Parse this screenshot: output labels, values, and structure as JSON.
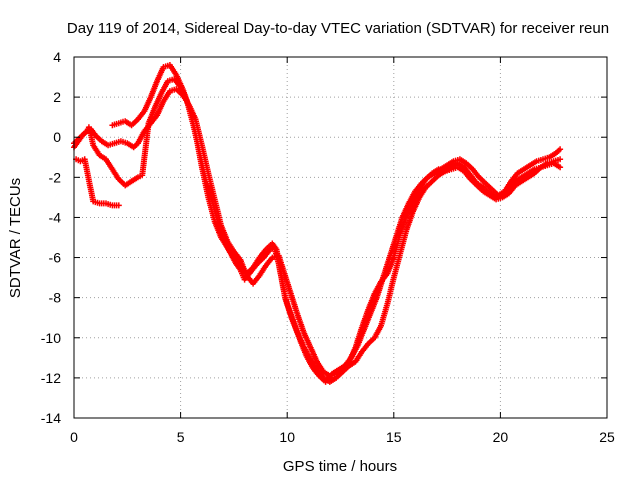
{
  "chart_data": {
    "type": "scatter",
    "title": "Day 119 of 2014, Sidereal Day-to-day VTEC variation (SDTVAR) for receiver reun",
    "xlabel": "GPS time / hours",
    "ylabel": "SDTVAR / TECUs",
    "xlim": [
      0,
      25
    ],
    "ylim": [
      -14,
      4
    ],
    "xticks": [
      0,
      5,
      10,
      15,
      20,
      25
    ],
    "yticks": [
      -14,
      -12,
      -10,
      -8,
      -6,
      -4,
      -2,
      0,
      2,
      4
    ],
    "grid": true,
    "legend": "none",
    "marker": "plus",
    "color": "#ff0000",
    "series": [
      {
        "values_xy": [
          [
            0.0,
            -0.3
          ],
          [
            0.3,
            0.0
          ],
          [
            0.6,
            0.3
          ],
          [
            0.7,
            0.5
          ],
          [
            0.8,
            0.1
          ],
          [
            0.9,
            -0.4
          ],
          [
            1.2,
            -0.9
          ],
          [
            1.5,
            -1.1
          ],
          [
            1.8,
            -1.6
          ],
          [
            2.1,
            -2.1
          ],
          [
            2.4,
            -2.4
          ],
          [
            2.7,
            -2.2
          ],
          [
            3.0,
            -2.0
          ],
          [
            3.2,
            -1.9
          ],
          [
            3.5,
            0.7
          ],
          [
            3.8,
            1.5
          ],
          [
            4.1,
            2.2
          ],
          [
            4.4,
            2.8
          ],
          [
            4.7,
            2.9
          ],
          [
            5.0,
            2.5
          ],
          [
            5.3,
            1.8
          ],
          [
            5.6,
            0.6
          ],
          [
            5.9,
            -0.8
          ],
          [
            6.2,
            -2.2
          ],
          [
            6.5,
            -3.2
          ],
          [
            6.8,
            -4.4
          ],
          [
            7.1,
            -5.3
          ],
          [
            7.4,
            -5.9
          ],
          [
            7.6,
            -6.3
          ],
          [
            7.8,
            -6.6
          ],
          [
            8.0,
            -7.1
          ],
          [
            8.3,
            -6.7
          ],
          [
            8.6,
            -6.3
          ],
          [
            8.9,
            -6.0
          ],
          [
            9.2,
            -5.6
          ],
          [
            9.4,
            -5.5
          ],
          [
            9.6,
            -6.3
          ],
          [
            9.8,
            -7.4
          ],
          [
            10.0,
            -8.3
          ],
          [
            10.3,
            -9.2
          ],
          [
            10.6,
            -10.1
          ],
          [
            10.9,
            -10.9
          ],
          [
            11.2,
            -11.5
          ],
          [
            11.5,
            -11.9
          ],
          [
            11.8,
            -12.2
          ],
          [
            12.1,
            -11.8
          ],
          [
            12.4,
            -11.6
          ],
          [
            12.7,
            -11.4
          ],
          [
            13.0,
            -11.0
          ],
          [
            13.3,
            -10.4
          ],
          [
            13.6,
            -9.6
          ],
          [
            13.9,
            -8.8
          ],
          [
            14.2,
            -8.0
          ],
          [
            14.5,
            -7.0
          ],
          [
            14.8,
            -6.0
          ],
          [
            15.1,
            -5.0
          ],
          [
            15.4,
            -4.0
          ],
          [
            15.7,
            -3.3
          ],
          [
            16.0,
            -2.7
          ],
          [
            16.3,
            -2.3
          ],
          [
            16.6,
            -2.0
          ],
          [
            16.9,
            -1.8
          ],
          [
            17.2,
            -1.6
          ],
          [
            17.5,
            -1.4
          ],
          [
            17.8,
            -1.2
          ],
          [
            18.1,
            -1.1
          ],
          [
            18.4,
            -1.3
          ],
          [
            18.7,
            -1.6
          ],
          [
            19.0,
            -2.0
          ],
          [
            19.3,
            -2.3
          ],
          [
            19.6,
            -2.6
          ],
          [
            19.9,
            -2.9
          ],
          [
            20.2,
            -2.7
          ],
          [
            20.5,
            -2.2
          ],
          [
            20.8,
            -1.8
          ],
          [
            21.1,
            -1.6
          ],
          [
            21.4,
            -1.4
          ],
          [
            21.7,
            -1.2
          ],
          [
            22.0,
            -1.1
          ],
          [
            22.3,
            -1.0
          ],
          [
            22.6,
            -0.8
          ],
          [
            22.8,
            -0.6
          ]
        ]
      },
      {
        "values_xy": [
          [
            0.1,
            -1.1
          ],
          [
            0.3,
            -1.2
          ],
          [
            0.5,
            -1.1
          ],
          [
            0.9,
            -3.2
          ],
          [
            1.2,
            -3.3
          ],
          [
            1.5,
            -3.3
          ],
          [
            1.8,
            -3.4
          ],
          [
            2.1,
            -3.4
          ],
          [
            1.8,
            0.6
          ],
          [
            2.1,
            0.7
          ],
          [
            2.4,
            0.8
          ],
          [
            2.7,
            0.6
          ],
          [
            3.0,
            0.9
          ],
          [
            3.3,
            1.3
          ],
          [
            3.6,
            2.0
          ],
          [
            3.9,
            2.8
          ],
          [
            4.2,
            3.5
          ],
          [
            4.5,
            3.6
          ],
          [
            4.8,
            3.1
          ],
          [
            5.1,
            2.4
          ],
          [
            5.4,
            1.5
          ],
          [
            5.7,
            0.2
          ],
          [
            6.0,
            -1.5
          ],
          [
            6.3,
            -3.0
          ],
          [
            6.6,
            -4.2
          ],
          [
            6.9,
            -5.0
          ],
          [
            7.2,
            -5.5
          ],
          [
            7.5,
            -6.0
          ],
          [
            7.8,
            -6.5
          ],
          [
            8.1,
            -6.8
          ],
          [
            8.4,
            -6.5
          ],
          [
            8.7,
            -6.0
          ],
          [
            9.0,
            -5.6
          ],
          [
            9.3,
            -5.3
          ],
          [
            9.5,
            -5.6
          ],
          [
            9.7,
            -6.8
          ],
          [
            9.9,
            -8.0
          ],
          [
            10.2,
            -9.0
          ],
          [
            10.5,
            -9.8
          ],
          [
            10.8,
            -10.5
          ],
          [
            11.1,
            -11.1
          ],
          [
            11.4,
            -11.6
          ],
          [
            11.7,
            -12.0
          ],
          [
            12.0,
            -12.2
          ],
          [
            12.3,
            -12.0
          ],
          [
            12.6,
            -11.7
          ],
          [
            12.9,
            -11.4
          ],
          [
            13.2,
            -11.2
          ],
          [
            13.5,
            -10.7
          ],
          [
            13.8,
            -10.3
          ],
          [
            14.1,
            -10.0
          ],
          [
            14.4,
            -9.4
          ],
          [
            14.7,
            -8.3
          ],
          [
            15.0,
            -7.0
          ],
          [
            15.3,
            -5.8
          ],
          [
            15.6,
            -4.6
          ],
          [
            15.9,
            -3.7
          ],
          [
            16.2,
            -3.0
          ],
          [
            16.5,
            -2.5
          ],
          [
            16.8,
            -2.2
          ],
          [
            17.1,
            -1.9
          ],
          [
            17.4,
            -1.7
          ],
          [
            17.7,
            -1.5
          ],
          [
            18.0,
            -1.3
          ],
          [
            18.3,
            -1.5
          ],
          [
            18.6,
            -1.9
          ],
          [
            18.9,
            -2.3
          ],
          [
            19.2,
            -2.5
          ],
          [
            19.5,
            -2.8
          ],
          [
            19.8,
            -3.0
          ],
          [
            20.1,
            -2.9
          ],
          [
            20.4,
            -2.6
          ],
          [
            20.7,
            -2.2
          ],
          [
            21.0,
            -2.0
          ],
          [
            21.3,
            -1.8
          ],
          [
            21.6,
            -1.6
          ],
          [
            21.9,
            -1.5
          ],
          [
            22.2,
            -1.3
          ],
          [
            22.5,
            -1.2
          ],
          [
            22.8,
            -1.1
          ]
        ]
      },
      {
        "values_xy": [
          [
            0.0,
            -0.5
          ],
          [
            0.2,
            -0.2
          ],
          [
            0.4,
            0.1
          ],
          [
            0.6,
            0.3
          ],
          [
            0.8,
            0.4
          ],
          [
            1.0,
            0.1
          ],
          [
            1.3,
            -0.2
          ],
          [
            1.6,
            -0.4
          ],
          [
            1.9,
            -0.3
          ],
          [
            2.2,
            -0.2
          ],
          [
            2.5,
            -0.3
          ],
          [
            2.8,
            -0.5
          ],
          [
            3.0,
            -0.3
          ],
          [
            3.3,
            0.3
          ],
          [
            3.6,
            0.7
          ],
          [
            3.9,
            1.1
          ],
          [
            4.2,
            1.8
          ],
          [
            4.5,
            2.3
          ],
          [
            4.8,
            2.4
          ],
          [
            5.1,
            2.1
          ],
          [
            5.4,
            1.6
          ],
          [
            5.7,
            0.9
          ],
          [
            6.0,
            -0.4
          ],
          [
            6.3,
            -1.8
          ],
          [
            6.6,
            -3.1
          ],
          [
            6.9,
            -4.4
          ],
          [
            7.2,
            -5.2
          ],
          [
            7.5,
            -5.7
          ],
          [
            7.8,
            -6.1
          ],
          [
            8.1,
            -6.9
          ],
          [
            8.4,
            -7.3
          ],
          [
            8.7,
            -6.9
          ],
          [
            9.0,
            -6.4
          ],
          [
            9.3,
            -6.0
          ],
          [
            9.6,
            -5.9
          ],
          [
            9.9,
            -6.9
          ],
          [
            10.2,
            -7.9
          ],
          [
            10.5,
            -8.9
          ],
          [
            10.8,
            -9.8
          ],
          [
            11.1,
            -10.5
          ],
          [
            11.4,
            -11.2
          ],
          [
            11.7,
            -11.7
          ],
          [
            12.0,
            -11.9
          ],
          [
            12.3,
            -11.8
          ],
          [
            12.6,
            -11.5
          ],
          [
            12.9,
            -11.2
          ],
          [
            13.2,
            -10.5
          ],
          [
            13.5,
            -9.5
          ],
          [
            13.8,
            -8.6
          ],
          [
            14.1,
            -7.8
          ],
          [
            14.4,
            -7.2
          ],
          [
            14.7,
            -6.8
          ],
          [
            15.0,
            -6.0
          ],
          [
            15.3,
            -4.8
          ],
          [
            15.6,
            -3.9
          ],
          [
            15.9,
            -3.2
          ],
          [
            16.2,
            -2.6
          ],
          [
            16.5,
            -2.1
          ],
          [
            16.8,
            -1.8
          ],
          [
            17.1,
            -1.6
          ],
          [
            17.4,
            -1.7
          ],
          [
            17.7,
            -1.6
          ],
          [
            18.0,
            -1.5
          ],
          [
            18.3,
            -1.7
          ],
          [
            18.6,
            -2.1
          ],
          [
            18.9,
            -2.4
          ],
          [
            19.2,
            -2.7
          ],
          [
            19.5,
            -2.9
          ],
          [
            19.8,
            -3.1
          ],
          [
            20.1,
            -3.0
          ],
          [
            20.4,
            -2.8
          ],
          [
            20.7,
            -2.4
          ],
          [
            21.0,
            -2.2
          ],
          [
            21.3,
            -2.0
          ],
          [
            21.6,
            -1.8
          ],
          [
            21.9,
            -1.5
          ],
          [
            22.2,
            -1.4
          ],
          [
            22.5,
            -1.3
          ],
          [
            22.8,
            -1.5
          ]
        ]
      }
    ]
  }
}
